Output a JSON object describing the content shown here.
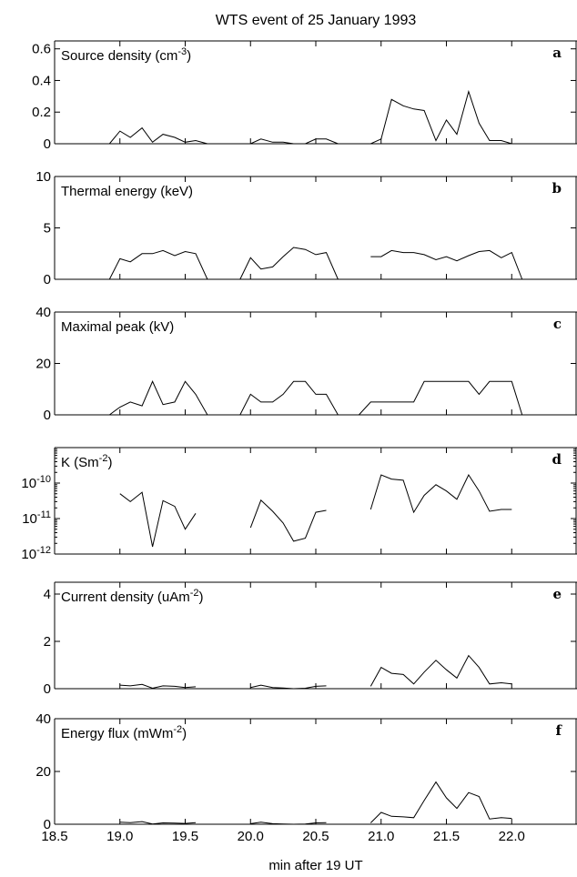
{
  "figure_title": "WTS event of 25 January 1993",
  "xlabel": "min after 19 UT",
  "x_tick_labels": [
    "18.5",
    "19.0",
    "19.5",
    "20.0",
    "20.5",
    "21.0",
    "21.5",
    "22.0"
  ],
  "chart_data": [
    {
      "type": "line",
      "letter": "a",
      "label_main": "Source density (cm",
      "label_sup": "-3",
      "label_end": ")",
      "xlim": [
        18.5,
        22.5
      ],
      "ylim": [
        0,
        0.65
      ],
      "yscale": "linear",
      "yticks": [
        0,
        0.2,
        0.4,
        0.6
      ],
      "ytick_labels": [
        "0",
        "0.2",
        "0.4",
        "0.6"
      ],
      "series": [
        {
          "x": [
            18.5,
            18.92,
            19.0,
            19.08,
            19.17,
            19.25,
            19.33,
            19.42,
            19.5,
            19.58,
            19.67,
            20.0,
            20.08,
            20.17,
            20.25,
            20.33,
            20.42,
            20.5,
            20.58,
            20.67,
            20.92,
            21.0,
            21.08,
            21.17,
            21.25,
            21.33,
            21.42,
            21.5,
            21.58,
            21.67,
            21.75,
            21.83,
            21.92,
            22.0,
            22.08
          ],
          "y": [
            0,
            0,
            0.08,
            0.04,
            0.1,
            0.01,
            0.06,
            0.04,
            0.01,
            0.02,
            0,
            0,
            0.03,
            0.01,
            0.01,
            0,
            0,
            0.03,
            0.03,
            0,
            0,
            0.03,
            0.28,
            0.24,
            0.22,
            0.21,
            0.02,
            0.15,
            0.06,
            0.33,
            0.13,
            0.02,
            0.02,
            0,
            0
          ]
        }
      ]
    },
    {
      "type": "line",
      "letter": "b",
      "label_main": "Thermal energy (keV)",
      "label_sup": "",
      "label_end": "",
      "xlim": [
        18.5,
        22.5
      ],
      "ylim": [
        0,
        10
      ],
      "yscale": "linear",
      "yticks": [
        0,
        5,
        10
      ],
      "ytick_labels": [
        "0",
        "5",
        "10"
      ],
      "series": [
        {
          "x": [
            18.92,
            19.0,
            19.08,
            19.17,
            19.25,
            19.33,
            19.42,
            19.5,
            19.58,
            19.67
          ],
          "y": [
            0,
            2.0,
            1.7,
            2.5,
            2.5,
            2.8,
            2.3,
            2.7,
            2.5,
            0
          ]
        },
        {
          "x": [
            19.92,
            20.0,
            20.08,
            20.17,
            20.25,
            20.33,
            20.42,
            20.5,
            20.58,
            20.67
          ],
          "y": [
            0,
            2.1,
            1.0,
            1.2,
            2.2,
            3.1,
            2.9,
            2.4,
            2.6,
            0
          ]
        },
        {
          "x": [
            20.92,
            21.0,
            21.08,
            21.17,
            21.25,
            21.33,
            21.42,
            21.5,
            21.58,
            21.67,
            21.75,
            21.83,
            21.92,
            22.0,
            22.08
          ],
          "y": [
            2.2,
            2.2,
            2.8,
            2.6,
            2.6,
            2.4,
            1.9,
            2.2,
            1.8,
            2.3,
            2.7,
            2.8,
            2.1,
            2.6,
            0
          ]
        }
      ]
    },
    {
      "type": "line",
      "letter": "c",
      "label_main": "Maximal peak (kV)",
      "label_sup": "",
      "label_end": "",
      "xlim": [
        18.5,
        22.5
      ],
      "ylim": [
        0,
        40
      ],
      "yscale": "linear",
      "yticks": [
        0,
        20,
        40
      ],
      "ytick_labels": [
        "0",
        "20",
        "40"
      ],
      "series": [
        {
          "x": [
            18.92,
            19.0,
            19.08,
            19.17,
            19.25,
            19.33,
            19.42,
            19.5,
            19.58,
            19.67
          ],
          "y": [
            0,
            3,
            5,
            3.5,
            13,
            4,
            5,
            13,
            8,
            0
          ]
        },
        {
          "x": [
            19.92,
            20.0,
            20.08,
            20.17,
            20.25,
            20.33,
            20.42,
            20.5,
            20.58,
            20.67
          ],
          "y": [
            0,
            8,
            5,
            5,
            8,
            13,
            13,
            8,
            8,
            0
          ]
        },
        {
          "x": [
            20.83,
            20.92,
            21.0,
            21.08,
            21.17,
            21.25,
            21.33,
            21.42,
            21.5,
            21.58,
            21.67,
            21.75,
            21.83,
            21.92,
            22.0,
            22.08
          ],
          "y": [
            0,
            5,
            5,
            5,
            5,
            5,
            13,
            13,
            13,
            13,
            13,
            8,
            13,
            13,
            13,
            0
          ]
        }
      ]
    },
    {
      "type": "line",
      "letter": "d",
      "label_main": "K (Sm",
      "label_sup": "-2",
      "label_end": ")",
      "xlim": [
        18.5,
        22.5
      ],
      "ylim": [
        1e-12,
        1e-09
      ],
      "yscale": "log",
      "yticks": [
        1e-12,
        1e-11,
        1e-10
      ],
      "ytick_labels": [
        "10-12",
        "10-11",
        "10-10"
      ],
      "series": [
        {
          "x": [
            19.0,
            19.08,
            19.17,
            19.25,
            19.33,
            19.42,
            19.5,
            19.58
          ],
          "y": [
            5e-11,
            3e-11,
            5.5e-11,
            1.6e-12,
            3.2e-11,
            2.2e-11,
            5e-12,
            1.4e-11
          ]
        },
        {
          "x": [
            20.0,
            20.08,
            20.17,
            20.25,
            20.33,
            20.42,
            20.5,
            20.58
          ],
          "y": [
            5.5e-12,
            3.3e-11,
            1.6e-11,
            7.5e-12,
            2.3e-12,
            2.8e-12,
            1.5e-11,
            1.7e-11
          ]
        },
        {
          "x": [
            20.92,
            21.0,
            21.08,
            21.17,
            21.25,
            21.33,
            21.42,
            21.5,
            21.58,
            21.67,
            21.75,
            21.83,
            21.92,
            22.0
          ],
          "y": [
            1.8e-11,
            1.7e-10,
            1.3e-10,
            1.2e-10,
            1.5e-11,
            4.5e-11,
            9e-11,
            6e-11,
            3.5e-11,
            1.7e-10,
            6e-11,
            1.6e-11,
            1.8e-11,
            1.8e-11
          ]
        }
      ]
    },
    {
      "type": "line",
      "letter": "e",
      "label_main": "Current density (uAm",
      "label_sup": "-2",
      "label_end": ")",
      "xlim": [
        18.5,
        22.5
      ],
      "ylim": [
        0,
        4.5
      ],
      "yscale": "linear",
      "yticks": [
        0,
        2,
        4
      ],
      "ytick_labels": [
        "0",
        "2",
        "4"
      ],
      "series": [
        {
          "x": [
            19.0,
            19.08,
            19.17,
            19.25,
            19.33,
            19.42,
            19.5,
            19.58
          ],
          "y": [
            0.15,
            0.12,
            0.18,
            0.02,
            0.12,
            0.1,
            0.05,
            0.08
          ]
        },
        {
          "x": [
            20.0,
            20.08,
            20.17,
            20.25,
            20.33,
            20.42,
            20.5,
            20.58
          ],
          "y": [
            0.05,
            0.15,
            0.05,
            0.03,
            0,
            0.02,
            0.1,
            0.12
          ]
        },
        {
          "x": [
            20.92,
            21.0,
            21.08,
            21.17,
            21.25,
            21.33,
            21.42,
            21.5,
            21.58,
            21.67,
            21.75,
            21.83,
            21.92,
            22.0
          ],
          "y": [
            0.1,
            0.9,
            0.65,
            0.6,
            0.2,
            0.7,
            1.2,
            0.8,
            0.45,
            1.4,
            0.9,
            0.2,
            0.25,
            0.2
          ]
        }
      ]
    },
    {
      "type": "line",
      "letter": "f",
      "label_main": "Energy flux (mWm",
      "label_sup": "-2",
      "label_end": ")",
      "xlim": [
        18.5,
        22.5
      ],
      "ylim": [
        0,
        40
      ],
      "yscale": "linear",
      "yticks": [
        0,
        20,
        40
      ],
      "ytick_labels": [
        "0",
        "20",
        "40"
      ],
      "series": [
        {
          "x": [
            19.0,
            19.08,
            19.17,
            19.25,
            19.33,
            19.42,
            19.5,
            19.58
          ],
          "y": [
            0.8,
            0.6,
            1.0,
            0.1,
            0.5,
            0.4,
            0.3,
            0.6
          ]
        },
        {
          "x": [
            20.0,
            20.08,
            20.17,
            20.25,
            20.33,
            20.42,
            20.5,
            20.58
          ],
          "y": [
            0.2,
            0.8,
            0.2,
            0.1,
            0,
            0.1,
            0.5,
            0.6
          ]
        },
        {
          "x": [
            20.92,
            21.0,
            21.08,
            21.17,
            21.25,
            21.33,
            21.42,
            21.5,
            21.58,
            21.67,
            21.75,
            21.83,
            21.92,
            22.0
          ],
          "y": [
            0.5,
            4.5,
            3,
            2.8,
            2.5,
            9,
            16,
            10,
            6,
            12,
            10.5,
            2,
            2.5,
            2.2
          ]
        }
      ]
    }
  ]
}
